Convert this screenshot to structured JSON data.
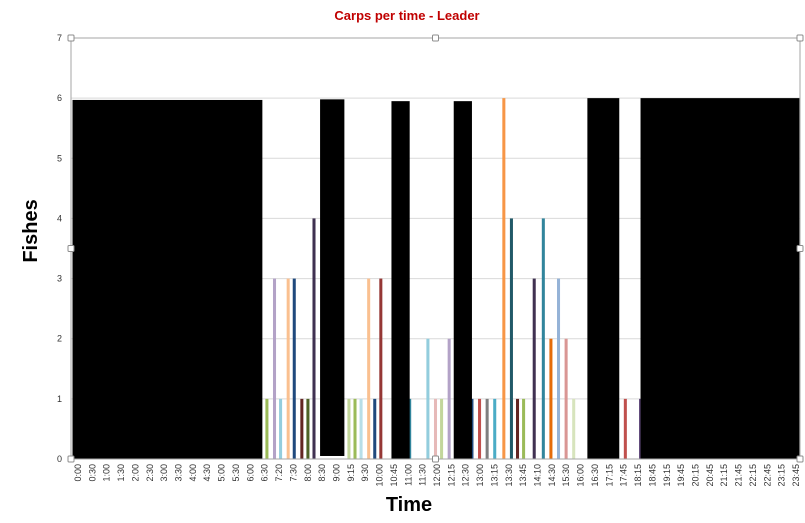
{
  "chart_data": {
    "type": "bar",
    "title": "Carps per time - Leader",
    "xlabel": "Time",
    "ylabel": "Fishes",
    "ylim": [
      0,
      7
    ],
    "yticks": [
      0,
      1,
      2,
      3,
      4,
      5,
      6,
      7
    ],
    "grid": true,
    "x_tick_labels": [
      "0:00",
      "0:30",
      "1:00",
      "1:30",
      "2:00",
      "2:30",
      "3:00",
      "3:30",
      "4:00",
      "4:30",
      "5:00",
      "5:30",
      "6:00",
      "6:30",
      "7:20",
      "7:30",
      "8:00",
      "8:30",
      "9:00",
      "9:15",
      "9:30",
      "10:00",
      "10:45",
      "11:00",
      "11:30",
      "12:00",
      "12:15",
      "12:30",
      "13:00",
      "13:15",
      "13:30",
      "13:45",
      "14:10",
      "14:30",
      "15:30",
      "16:00",
      "16:30",
      "17:15",
      "17:45",
      "18:15",
      "18:45",
      "19:15",
      "19:45",
      "20:15",
      "20:45",
      "21:15",
      "21:45",
      "22:15",
      "22:45",
      "23:15",
      "23:45"
    ],
    "x_domain": [
      0,
      24
    ],
    "bars": [
      {
        "x": 6.45,
        "value": 1,
        "color": "#9bbb59"
      },
      {
        "x": 6.7,
        "value": 3,
        "color": "#b3a2c7"
      },
      {
        "x": 6.9,
        "value": 1,
        "color": "#93cddd"
      },
      {
        "x": 7.15,
        "value": 3,
        "color": "#fac090"
      },
      {
        "x": 7.35,
        "value": 3,
        "color": "#1f497d"
      },
      {
        "x": 7.6,
        "value": 1,
        "color": "#632523"
      },
      {
        "x": 7.8,
        "value": 1,
        "color": "#4f6228"
      },
      {
        "x": 8.0,
        "value": 4,
        "color": "#403151"
      },
      {
        "x": 9.15,
        "value": 1,
        "color": "#c3d69b"
      },
      {
        "x": 9.35,
        "value": 1,
        "color": "#9bbb59"
      },
      {
        "x": 9.55,
        "value": 1,
        "color": "#b7dee8"
      },
      {
        "x": 9.8,
        "value": 3,
        "color": "#fac090"
      },
      {
        "x": 10.0,
        "value": 1,
        "color": "#1f497d"
      },
      {
        "x": 10.2,
        "value": 3,
        "color": "#953735"
      },
      {
        "x": 11.15,
        "value": 1,
        "color": "#31859c"
      },
      {
        "x": 11.75,
        "value": 2,
        "color": "#93cddd"
      },
      {
        "x": 12.0,
        "value": 1,
        "color": "#e6b9b8"
      },
      {
        "x": 12.2,
        "value": 1,
        "color": "#c3d69b"
      },
      {
        "x": 12.45,
        "value": 2,
        "color": "#b3a2c7"
      },
      {
        "x": 13.2,
        "value": 1,
        "color": "#1f497d"
      },
      {
        "x": 13.45,
        "value": 1,
        "color": "#c0504d"
      },
      {
        "x": 13.7,
        "value": 1,
        "color": "#7f7f7f"
      },
      {
        "x": 13.95,
        "value": 1,
        "color": "#4bacc6"
      },
      {
        "x": 14.25,
        "value": 6,
        "color": "#f79646"
      },
      {
        "x": 14.5,
        "value": 4,
        "color": "#215968"
      },
      {
        "x": 14.7,
        "value": 1,
        "color": "#632523"
      },
      {
        "x": 14.9,
        "value": 1,
        "color": "#9bbb59"
      },
      {
        "x": 15.25,
        "value": 3,
        "color": "#403151"
      },
      {
        "x": 15.55,
        "value": 4,
        "color": "#31859c"
      },
      {
        "x": 15.8,
        "value": 2,
        "color": "#e46c0a"
      },
      {
        "x": 16.05,
        "value": 3,
        "color": "#95b3d7"
      },
      {
        "x": 16.3,
        "value": 2,
        "color": "#d99694"
      },
      {
        "x": 16.55,
        "value": 1,
        "color": "#d7e4bd"
      },
      {
        "x": 18.25,
        "value": 1,
        "color": "#c0504d"
      },
      {
        "x": 18.75,
        "value": 1,
        "color": "#604a7b"
      }
    ],
    "bar_width": 0.1,
    "occluding_boxes": [
      {
        "x_start": 0.05,
        "x_end": 6.3,
        "top": 5.97,
        "bottom": 0
      },
      {
        "x_start": 8.2,
        "x_end": 9.0,
        "top": 5.98,
        "bottom": 0.05
      },
      {
        "x_start": 10.55,
        "x_end": 11.15,
        "top": 5.95,
        "bottom": 0
      },
      {
        "x_start": 12.6,
        "x_end": 13.2,
        "top": 5.95,
        "bottom": 0
      },
      {
        "x_start": 17.0,
        "x_end": 18.05,
        "top": 6.0,
        "bottom": 0
      },
      {
        "x_start": 18.75,
        "x_end": 23.98,
        "top": 6.0,
        "bottom": 0
      }
    ],
    "colors": {
      "title": "#c00000",
      "occluding_box": "#000000"
    }
  }
}
